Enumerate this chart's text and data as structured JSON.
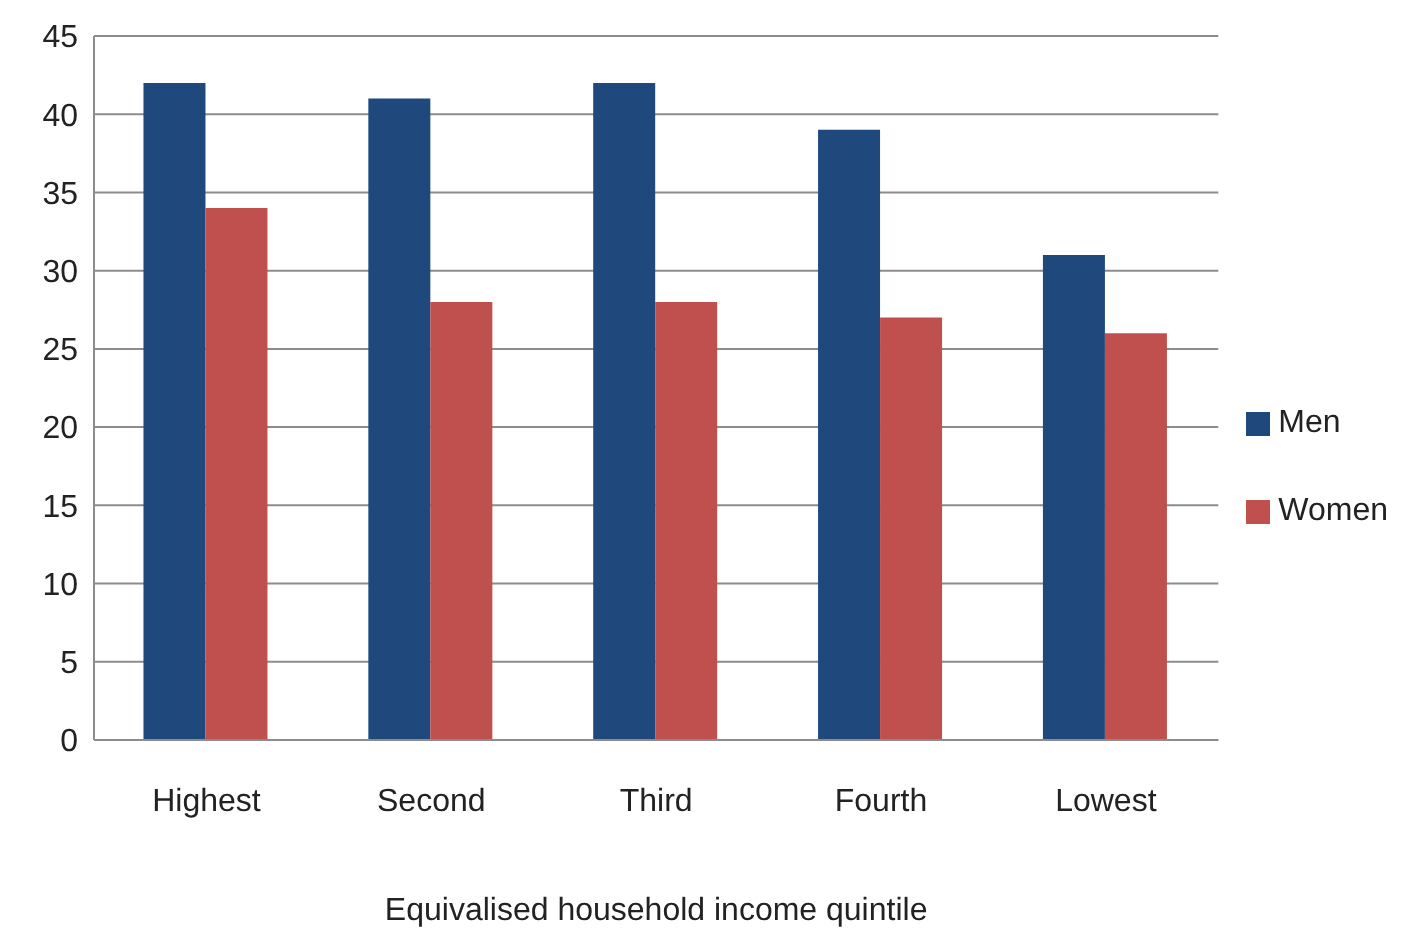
{
  "chart_data": {
    "type": "bar",
    "xlabel": "Equivalised household income quintile",
    "categories": [
      "Highest",
      "Second",
      "Third",
      "Fourth",
      "Lowest"
    ],
    "series": [
      {
        "name": "Men",
        "color": "#1f497d",
        "values": [
          42,
          41,
          42,
          39,
          31
        ]
      },
      {
        "name": "Women",
        "color": "#c0504d",
        "values": [
          34,
          28,
          28,
          27,
          26
        ]
      }
    ],
    "ylim": [
      0,
      45
    ],
    "yticks": [
      0,
      5,
      10,
      15,
      20,
      25,
      30,
      35,
      40,
      45
    ],
    "grid": "y",
    "legend": "right"
  }
}
